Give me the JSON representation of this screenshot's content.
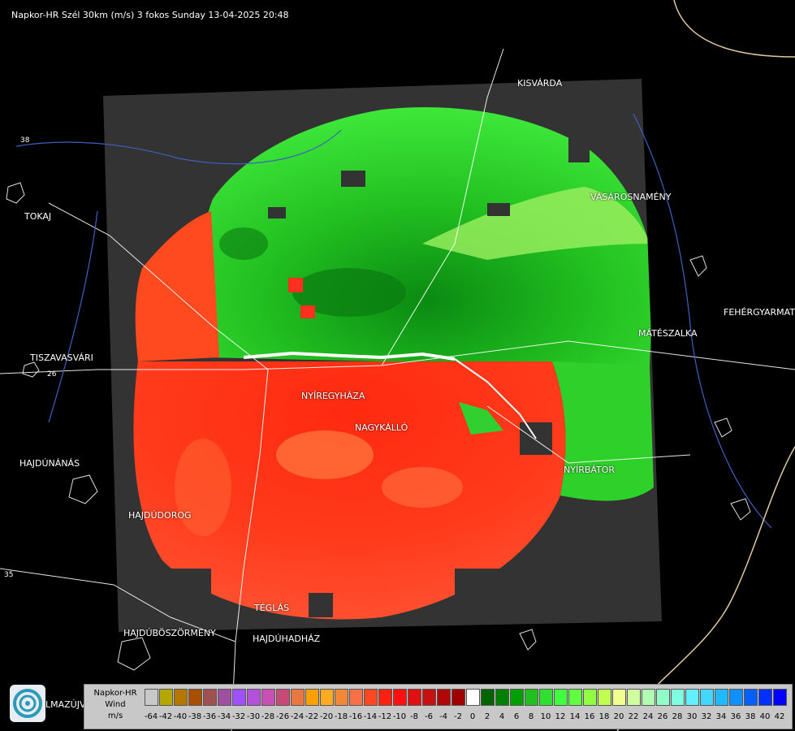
{
  "title": "Napkor-HR Szél 30km (m/s) 3 fokos Sunday 13-04-2025 20:48",
  "cities": [
    {
      "name": "KISVÁRDA",
      "key": "kisvarda"
    },
    {
      "name": "TOKAJ",
      "key": "tokaj"
    },
    {
      "name": "VÁSÁROSNAMÉNY",
      "key": "vasarosnameny"
    },
    {
      "name": "FEHÉRGYARMAT",
      "key": "fehergyarmat"
    },
    {
      "name": "MÁTÉSZALKA",
      "key": "mateszalka"
    },
    {
      "name": "TISZAVASVÁRI",
      "key": "tiszavasvari"
    },
    {
      "name": "NYÍREGYHÁZA",
      "key": "nyiregyhaza"
    },
    {
      "name": "NAGYKÁLLÓ",
      "key": "nagykallo"
    },
    {
      "name": "HAJDÚNÁNÁS",
      "key": "hajdunanas"
    },
    {
      "name": "NYÍRBÁTOR",
      "key": "nyirbator"
    },
    {
      "name": "HAJDÚDOROG",
      "key": "hajdudorog"
    },
    {
      "name": "TÉGLÁS",
      "key": "teglas"
    },
    {
      "name": "HAJDÚBÖSZÖRMÉNY",
      "key": "hajduboszormeny"
    },
    {
      "name": "HAJDÚHADHÁZ",
      "key": "hajduhadhaz"
    },
    {
      "name": "LMAZÚJVÁR",
      "key": "lmazujvar"
    }
  ],
  "roads": [
    "26",
    "35",
    "38"
  ],
  "legend": {
    "line1": "Napkor-HR",
    "line2": "Wind",
    "line3": "m/s",
    "values": [
      "-64",
      "-42",
      "-40",
      "-38",
      "-36",
      "-34",
      "-32",
      "-30",
      "-28",
      "-26",
      "-24",
      "-22",
      "-20",
      "-18",
      "-16",
      "-14",
      "-12",
      "-10",
      "-8",
      "-6",
      "-4",
      "-2",
      "0",
      "2",
      "4",
      "6",
      "8",
      "10",
      "12",
      "14",
      "16",
      "18",
      "20",
      "22",
      "24",
      "26",
      "28",
      "30",
      "32",
      "34",
      "36",
      "38",
      "40",
      "42"
    ],
    "colors": [
      "#c8c8c8",
      "#b4a800",
      "#b47800",
      "#a85000",
      "#a05050",
      "#a050a0",
      "#a050ff",
      "#b450dc",
      "#c850b4",
      "#c84878",
      "#e87840",
      "#ffa000",
      "#ffaa20",
      "#f08838",
      "#f87048",
      "#ff4820",
      "#ff2010",
      "#ff1010",
      "#e01010",
      "#c81010",
      "#b00808",
      "#a00000",
      "#ffffff",
      "#006400",
      "#008000",
      "#00a000",
      "#20c020",
      "#30e030",
      "#40ff40",
      "#60ff40",
      "#90ff40",
      "#c0ff50",
      "#f0ff90",
      "#d0ffa0",
      "#b0ffb0",
      "#90ffc8",
      "#80ffe0",
      "#60f0ff",
      "#40d8ff",
      "#20b8ff",
      "#1090ff",
      "#0060ff",
      "#0030ff",
      "#0000ff"
    ]
  }
}
